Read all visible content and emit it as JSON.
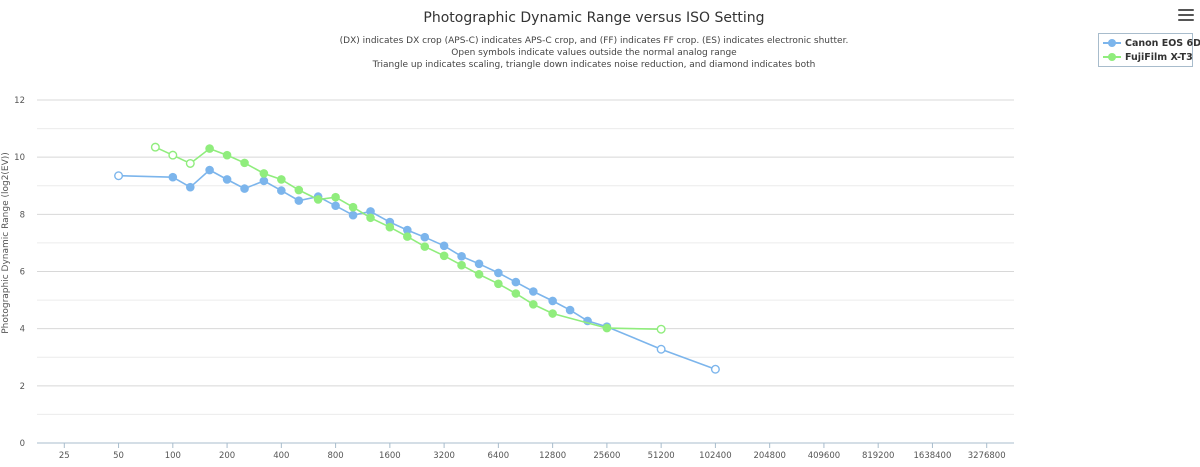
{
  "chart_data": {
    "type": "line",
    "title": "Photographic Dynamic Range versus ISO Setting",
    "subtitle": [
      "(DX) indicates DX crop (APS-C) indicates APS-C crop, and (FF) indicates FF crop. (ES) indicates electronic shutter.",
      "Open symbols indicate values outside the normal analog range",
      "Triangle up indicates scaling, triangle down indicates noise reduction, and diamond indicates both"
    ],
    "ylabel": "Photographic Dynamic Range (log2(EV))",
    "xlabel": "",
    "x_scale": "log2",
    "xlim": [
      25,
      3276800
    ],
    "ylim": [
      0,
      12
    ],
    "x_ticks": [
      25,
      50,
      100,
      200,
      400,
      800,
      1600,
      3200,
      6400,
      12800,
      25600,
      51200,
      102400,
      204800,
      409600,
      819200,
      1638400,
      3276800
    ],
    "y_ticks": [
      0,
      2,
      4,
      6,
      8,
      10,
      12
    ],
    "grid": true,
    "legend_position": "top-right",
    "series": [
      {
        "name": "Canon EOS 6D",
        "color": "#7cb5ec",
        "points": [
          {
            "x": 50,
            "y": 9.35,
            "open": true
          },
          {
            "x": 100,
            "y": 9.3,
            "open": false
          },
          {
            "x": 125,
            "y": 8.95,
            "open": false
          },
          {
            "x": 160,
            "y": 9.55,
            "open": false
          },
          {
            "x": 200,
            "y": 9.22,
            "open": false
          },
          {
            "x": 250,
            "y": 8.9,
            "open": false
          },
          {
            "x": 320,
            "y": 9.17,
            "open": false
          },
          {
            "x": 400,
            "y": 8.83,
            "open": false
          },
          {
            "x": 500,
            "y": 8.48,
            "open": false
          },
          {
            "x": 640,
            "y": 8.62,
            "open": false
          },
          {
            "x": 800,
            "y": 8.3,
            "open": false
          },
          {
            "x": 1000,
            "y": 7.97,
            "open": false
          },
          {
            "x": 1250,
            "y": 8.1,
            "open": false
          },
          {
            "x": 1600,
            "y": 7.73,
            "open": false
          },
          {
            "x": 2000,
            "y": 7.45,
            "open": false
          },
          {
            "x": 2500,
            "y": 7.2,
            "open": false
          },
          {
            "x": 3200,
            "y": 6.9,
            "open": false
          },
          {
            "x": 4000,
            "y": 6.53,
            "open": false
          },
          {
            "x": 5000,
            "y": 6.27,
            "open": false
          },
          {
            "x": 6400,
            "y": 5.95,
            "open": false
          },
          {
            "x": 8000,
            "y": 5.63,
            "open": false
          },
          {
            "x": 10000,
            "y": 5.3,
            "open": false
          },
          {
            "x": 12800,
            "y": 4.97,
            "open": false
          },
          {
            "x": 16000,
            "y": 4.65,
            "open": false
          },
          {
            "x": 20000,
            "y": 4.27,
            "open": false
          },
          {
            "x": 25600,
            "y": 4.07,
            "open": false
          },
          {
            "x": 51200,
            "y": 3.28,
            "open": true
          },
          {
            "x": 102400,
            "y": 2.58,
            "open": true
          }
        ]
      },
      {
        "name": "FujiFilm X-T3",
        "color": "#90ed7d",
        "points": [
          {
            "x": 80,
            "y": 10.35,
            "open": true
          },
          {
            "x": 100,
            "y": 10.07,
            "open": true
          },
          {
            "x": 125,
            "y": 9.78,
            "open": true
          },
          {
            "x": 160,
            "y": 10.3,
            "open": false
          },
          {
            "x": 200,
            "y": 10.07,
            "open": false
          },
          {
            "x": 250,
            "y": 9.8,
            "open": false
          },
          {
            "x": 320,
            "y": 9.43,
            "open": false
          },
          {
            "x": 400,
            "y": 9.22,
            "open": false
          },
          {
            "x": 500,
            "y": 8.85,
            "open": false
          },
          {
            "x": 640,
            "y": 8.52,
            "open": false
          },
          {
            "x": 800,
            "y": 8.6,
            "open": false
          },
          {
            "x": 1000,
            "y": 8.25,
            "open": false
          },
          {
            "x": 1250,
            "y": 7.88,
            "open": false
          },
          {
            "x": 1600,
            "y": 7.55,
            "open": false
          },
          {
            "x": 2000,
            "y": 7.22,
            "open": false
          },
          {
            "x": 2500,
            "y": 6.87,
            "open": false
          },
          {
            "x": 3200,
            "y": 6.55,
            "open": false
          },
          {
            "x": 4000,
            "y": 6.22,
            "open": false
          },
          {
            "x": 5000,
            "y": 5.9,
            "open": false
          },
          {
            "x": 6400,
            "y": 5.57,
            "open": false
          },
          {
            "x": 8000,
            "y": 5.23,
            "open": false
          },
          {
            "x": 10000,
            "y": 4.85,
            "open": false
          },
          {
            "x": 12800,
            "y": 4.53,
            "open": false
          },
          {
            "x": 25600,
            "y": 4.02,
            "open": false
          },
          {
            "x": 51200,
            "y": 3.98,
            "open": true
          }
        ]
      }
    ]
  },
  "ui": {
    "menu_icon": "hamburger-menu-icon",
    "legend_items": [
      {
        "label": "Canon EOS 6D",
        "color": "#7cb5ec"
      },
      {
        "label": "FujiFilm X-T3",
        "color": "#90ed7d"
      }
    ]
  }
}
